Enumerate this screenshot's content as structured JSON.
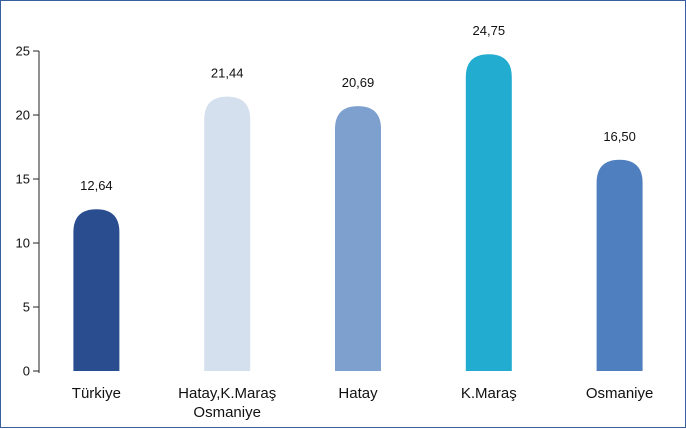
{
  "chart_data": {
    "type": "bar",
    "categories": [
      "Türkiye",
      "Hatay,K.Maraş\nOsmaniye",
      "Hatay",
      "K.Maraş",
      "Osmaniye"
    ],
    "values": [
      12.64,
      21.44,
      20.69,
      24.75,
      16.5
    ],
    "value_labels": [
      "12,64",
      "21,44",
      "20,69",
      "24,75",
      "16,50"
    ],
    "colors": [
      "#2a4d8f",
      "#d5e0ee",
      "#7da0cf",
      "#21acd0",
      "#4f7fbf"
    ],
    "ylim": [
      0,
      25
    ],
    "yticks": [
      "0",
      "5",
      "10",
      "15",
      "20",
      "25"
    ],
    "ytick_values": [
      0,
      5,
      10,
      15,
      20,
      25
    ],
    "grid": false,
    "legend": "none",
    "title": "",
    "xlabel": "",
    "ylabel": ""
  }
}
